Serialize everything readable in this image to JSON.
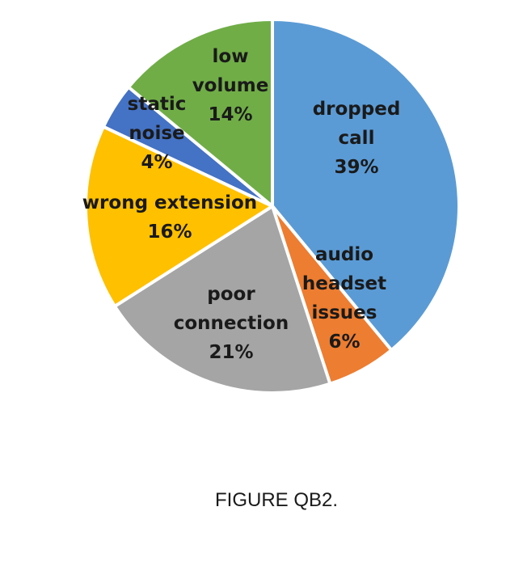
{
  "chart_data": {
    "type": "pie",
    "slices": [
      {
        "label": [
          "dropped",
          "call"
        ],
        "value": 39,
        "value_label": "39%",
        "color": "#5b9bd5"
      },
      {
        "label": [
          "audio",
          "headset",
          "issues"
        ],
        "value": 6,
        "value_label": "6%",
        "color": "#ed7d31"
      },
      {
        "label": [
          "poor",
          "connection"
        ],
        "value": 21,
        "value_label": "21%",
        "color": "#a5a5a5"
      },
      {
        "label": [
          "wrong extension"
        ],
        "value": 16,
        "value_label": "16%",
        "color": "#ffc000"
      },
      {
        "label": [
          "static",
          "noise"
        ],
        "value": 4,
        "value_label": "4%",
        "color": "#4472c4"
      },
      {
        "label": [
          "low",
          "volume"
        ],
        "value": 14,
        "value_label": "14%",
        "color": "#70ad47"
      }
    ]
  },
  "caption": "FIGURE QB2."
}
